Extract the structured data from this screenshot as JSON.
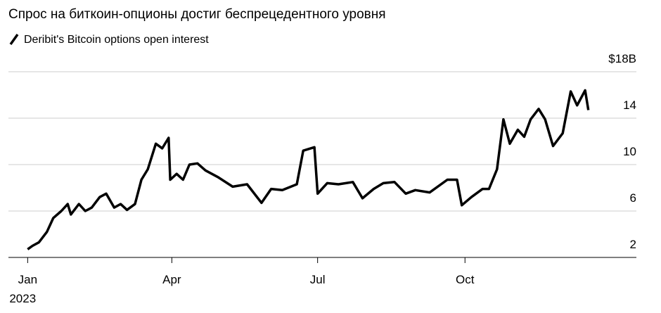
{
  "chart_data": {
    "type": "line",
    "title": "Спрос на биткоин-опционы достиг беспрецедентного уровня",
    "series": [
      {
        "name": "Deribit's Bitcoin options open interest",
        "color": "#000000",
        "values": [
          2.7,
          3.0,
          3.3,
          4.2,
          5.4,
          6.0,
          6.6,
          5.7,
          6.6,
          6.0,
          6.3,
          7.2,
          7.5,
          6.3,
          6.6,
          6.1,
          6.6,
          8.7,
          9.6,
          11.8,
          11.4,
          12.3,
          8.7,
          9.2,
          8.7,
          10.0,
          10.1,
          9.5,
          8.9,
          8.1,
          8.3,
          6.7,
          7.9,
          7.8,
          8.3,
          11.2,
          11.5,
          7.5,
          8.4,
          8.3,
          8.5,
          7.1,
          7.9,
          8.4,
          8.5,
          7.5,
          7.8,
          7.6,
          8.7,
          8.7,
          6.5,
          7.2,
          7.9,
          7.9,
          9.6,
          13.9,
          11.8,
          13.0,
          12.4,
          13.9,
          14.8,
          13.9,
          11.6,
          12.7,
          16.3,
          15.1,
          16.4,
          14.7
        ]
      }
    ],
    "x": [
      "2023-01-01",
      "2023-01-04",
      "2023-01-08",
      "2023-01-13",
      "2023-01-17",
      "2023-01-22",
      "2023-01-26",
      "2023-01-28",
      "2023-02-02",
      "2023-02-06",
      "2023-02-10",
      "2023-02-15",
      "2023-02-19",
      "2023-02-24",
      "2023-02-28",
      "2023-03-04",
      "2023-03-09",
      "2023-03-13",
      "2023-03-17",
      "2023-03-22",
      "2023-03-26",
      "2023-03-30",
      "2023-03-31",
      "2023-04-04",
      "2023-04-08",
      "2023-04-12",
      "2023-04-17",
      "2023-04-22",
      "2023-04-30",
      "2023-05-09",
      "2023-05-18",
      "2023-05-27",
      "2023-06-02",
      "2023-06-09",
      "2023-06-18",
      "2023-06-22",
      "2023-06-29",
      "2023-07-01",
      "2023-07-07",
      "2023-07-14",
      "2023-07-23",
      "2023-07-29",
      "2023-08-05",
      "2023-08-11",
      "2023-08-18",
      "2023-08-25",
      "2023-08-31",
      "2023-09-09",
      "2023-09-20",
      "2023-09-26",
      "2023-09-29",
      "2023-10-05",
      "2023-10-12",
      "2023-10-16",
      "2023-10-21",
      "2023-10-25",
      "2023-10-29",
      "2023-11-03",
      "2023-11-07",
      "2023-11-11",
      "2023-11-16",
      "2023-11-20",
      "2023-11-25",
      "2023-12-01",
      "2023-12-06",
      "2023-12-10",
      "2023-12-15",
      "2023-12-17"
    ],
    "xlim": [
      "2022-12-20",
      "2024-01-16"
    ],
    "xticks": [
      {
        "value": "2023-01-01",
        "label": "Jan"
      },
      {
        "value": "2023-04-01",
        "label": "Apr"
      },
      {
        "value": "2023-07-01",
        "label": "Jul"
      },
      {
        "value": "2023-10-01",
        "label": "Oct"
      }
    ],
    "x_year_label": "2023",
    "ylim": [
      2,
      18
    ],
    "yticks": [
      2,
      6,
      10,
      14,
      {
        "value": 18,
        "label": "$18B"
      }
    ],
    "grid": true
  }
}
